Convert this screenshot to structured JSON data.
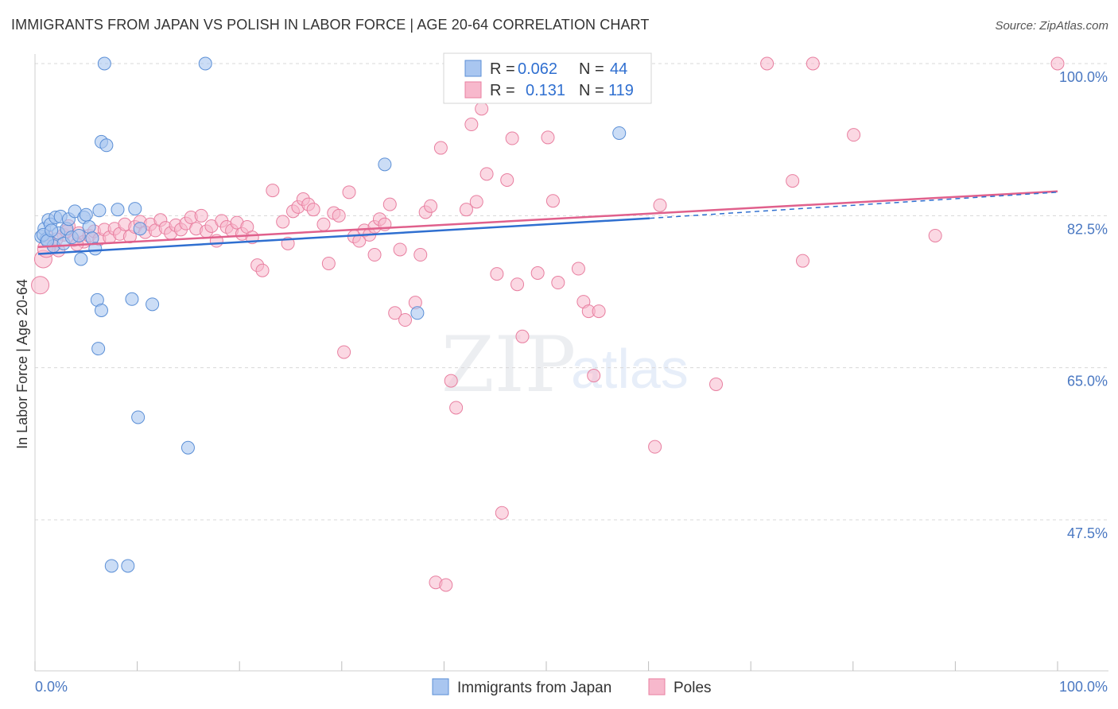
{
  "title": "IMMIGRANTS FROM JAPAN VS POLISH IN LABOR FORCE | AGE 20-64 CORRELATION CHART",
  "source": "Source: ZipAtlas.com",
  "watermark": {
    "zip": "ZIP",
    "atlas": "atlas"
  },
  "colors": {
    "japan_fill": "#a9c6f0",
    "japan_stroke": "#5b8fd6",
    "japan_line": "#2f6fd0",
    "poles_fill": "#f7b8cc",
    "poles_stroke": "#e87fa0",
    "poles_line": "#e0608c",
    "tick_label": "#4a78c2",
    "grid": "#d8d8d8"
  },
  "legend": {
    "r_label": "R =",
    "n_label": "N =",
    "rows": [
      {
        "r": "0.062",
        "n": "44"
      },
      {
        "r": "0.131",
        "n": "119"
      }
    ]
  },
  "chart_data": {
    "type": "scatter",
    "title": "IMMIGRANTS FROM JAPAN VS POLISH IN LABOR FORCE | AGE 20-64 CORRELATION CHART",
    "xlabel": "",
    "ylabel": "In Labor Force | Age 20-64",
    "xlim": [
      0,
      100
    ],
    "ylim": [
      30,
      102
    ],
    "x_tick_labels": [
      "0.0%",
      "100.0%"
    ],
    "y_ticks": [
      47.5,
      65.0,
      82.5,
      100.0
    ],
    "y_tick_labels": [
      "47.5%",
      "65.0%",
      "82.5%",
      "100.0%"
    ],
    "grid": "horizontal dashed",
    "legend_position": "top-center",
    "series": [
      {
        "name": "Immigrants from Japan",
        "r": 0.062,
        "n": 44,
        "trend": {
          "x0": 0,
          "y0": 78.1,
          "x1": 60,
          "y1": 82.2,
          "dash_to_x": 100,
          "dash_to_y": 85.2
        },
        "points": [
          [
            0.3,
            80.1
          ],
          [
            0.6,
            81.0
          ],
          [
            0.8,
            79.8
          ],
          [
            1.0,
            82.0
          ],
          [
            1.2,
            81.5
          ],
          [
            1.5,
            79.0
          ],
          [
            1.7,
            82.3
          ],
          [
            2.0,
            80.5
          ],
          [
            2.2,
            82.4
          ],
          [
            2.5,
            79.3
          ],
          [
            2.8,
            81.0
          ],
          [
            3.0,
            82.1
          ],
          [
            3.3,
            80.0
          ],
          [
            3.6,
            83.0
          ],
          [
            4.0,
            80.2
          ],
          [
            4.2,
            77.5
          ],
          [
            4.5,
            82.3
          ],
          [
            4.7,
            82.6
          ],
          [
            5.0,
            81.2
          ],
          [
            5.3,
            79.9
          ],
          [
            5.6,
            78.7
          ],
          [
            5.8,
            72.8
          ],
          [
            5.9,
            67.2
          ],
          [
            6.0,
            83.1
          ],
          [
            6.2,
            71.6
          ],
          [
            6.2,
            91.0
          ],
          [
            6.5,
            100.0
          ],
          [
            6.7,
            90.6
          ],
          [
            7.2,
            42.2
          ],
          [
            7.8,
            83.2
          ],
          [
            8.8,
            42.2
          ],
          [
            9.2,
            72.9
          ],
          [
            9.5,
            83.3
          ],
          [
            9.8,
            59.3
          ],
          [
            10.0,
            81.0
          ],
          [
            11.2,
            72.3
          ],
          [
            14.7,
            55.8
          ],
          [
            16.4,
            100.0
          ],
          [
            57.0,
            92.0
          ],
          [
            34.0,
            88.4
          ],
          [
            37.2,
            71.3
          ],
          [
            0.5,
            80.3
          ],
          [
            0.9,
            79.6
          ],
          [
            1.3,
            80.8
          ]
        ]
      },
      {
        "name": "Poles",
        "r": 0.131,
        "n": 119,
        "trend": {
          "x0": 0,
          "y0": 78.9,
          "x1": 100,
          "y1": 85.3
        },
        "points": [
          [
            0.2,
            74.5
          ],
          [
            0.5,
            77.5
          ],
          [
            1.0,
            80.0
          ],
          [
            1.5,
            79.0
          ],
          [
            2.0,
            78.5
          ],
          [
            2.5,
            80.3
          ],
          [
            3.0,
            81.3
          ],
          [
            3.5,
            79.7
          ],
          [
            4.0,
            80.5
          ],
          [
            4.5,
            79.5
          ],
          [
            5.0,
            80.2
          ],
          [
            5.5,
            80.7
          ],
          [
            6.0,
            79.8
          ],
          [
            6.5,
            80.9
          ],
          [
            7.0,
            80.0
          ],
          [
            7.5,
            81.0
          ],
          [
            8.0,
            80.4
          ],
          [
            8.5,
            81.5
          ],
          [
            9.0,
            80.1
          ],
          [
            9.5,
            81.2
          ],
          [
            10.0,
            81.8
          ],
          [
            10.5,
            80.6
          ],
          [
            11.0,
            81.5
          ],
          [
            11.5,
            80.8
          ],
          [
            12.0,
            82.0
          ],
          [
            12.5,
            81.1
          ],
          [
            13.0,
            80.5
          ],
          [
            13.5,
            81.4
          ],
          [
            14.0,
            80.9
          ],
          [
            14.5,
            81.6
          ],
          [
            15.0,
            82.3
          ],
          [
            15.5,
            81.0
          ],
          [
            16.0,
            82.5
          ],
          [
            16.5,
            80.7
          ],
          [
            17.0,
            81.3
          ],
          [
            17.5,
            79.6
          ],
          [
            18.0,
            81.9
          ],
          [
            18.5,
            81.2
          ],
          [
            19.0,
            80.8
          ],
          [
            19.5,
            81.7
          ],
          [
            20.0,
            80.4
          ],
          [
            20.5,
            81.2
          ],
          [
            21.0,
            80.0
          ],
          [
            21.5,
            76.8
          ],
          [
            22.0,
            76.2
          ],
          [
            23.0,
            85.4
          ],
          [
            24.0,
            81.8
          ],
          [
            24.5,
            79.3
          ],
          [
            25.0,
            83.0
          ],
          [
            25.5,
            83.5
          ],
          [
            26.0,
            84.4
          ],
          [
            26.5,
            83.8
          ],
          [
            27.0,
            83.2
          ],
          [
            28.0,
            81.5
          ],
          [
            28.5,
            77.0
          ],
          [
            29.0,
            82.8
          ],
          [
            29.5,
            82.5
          ],
          [
            30.0,
            66.8
          ],
          [
            30.5,
            85.2
          ],
          [
            31.0,
            80.1
          ],
          [
            31.5,
            79.6
          ],
          [
            32.0,
            80.8
          ],
          [
            32.5,
            80.3
          ],
          [
            33.0,
            81.2
          ],
          [
            33.5,
            82.1
          ],
          [
            34.0,
            81.5
          ],
          [
            34.5,
            83.8
          ],
          [
            33.0,
            78.0
          ],
          [
            35.0,
            71.3
          ],
          [
            35.5,
            78.6
          ],
          [
            36.0,
            70.5
          ],
          [
            37.0,
            72.5
          ],
          [
            37.5,
            78.0
          ],
          [
            38.0,
            82.9
          ],
          [
            38.5,
            83.6
          ],
          [
            39.0,
            40.3
          ],
          [
            39.5,
            90.3
          ],
          [
            40.0,
            40.0
          ],
          [
            40.5,
            63.5
          ],
          [
            41.0,
            60.4
          ],
          [
            41.5,
            99.7
          ],
          [
            42.0,
            83.2
          ],
          [
            42.5,
            93.0
          ],
          [
            43.0,
            84.1
          ],
          [
            43.5,
            94.8
          ],
          [
            44.0,
            87.3
          ],
          [
            44.5,
            99.0
          ],
          [
            45.0,
            75.8
          ],
          [
            45.5,
            48.3
          ],
          [
            46.0,
            86.6
          ],
          [
            46.5,
            91.4
          ],
          [
            47.0,
            74.6
          ],
          [
            47.5,
            68.6
          ],
          [
            48.0,
            99.5
          ],
          [
            49.0,
            75.9
          ],
          [
            50.0,
            91.5
          ],
          [
            50.5,
            84.2
          ],
          [
            51.0,
            74.8
          ],
          [
            52.0,
            97.0
          ],
          [
            53.0,
            76.4
          ],
          [
            53.5,
            72.6
          ],
          [
            54.0,
            71.5
          ],
          [
            54.5,
            64.1
          ],
          [
            55.0,
            71.5
          ],
          [
            56.0,
            98.0
          ],
          [
            60.5,
            55.9
          ],
          [
            61.0,
            83.7
          ],
          [
            66.5,
            63.1
          ],
          [
            71.5,
            100.0
          ],
          [
            74.0,
            86.5
          ],
          [
            75.0,
            77.3
          ],
          [
            76.0,
            100.0
          ],
          [
            80.0,
            91.8
          ],
          [
            88.0,
            80.2
          ],
          [
            100.0,
            100.0
          ],
          [
            0.8,
            78.7
          ],
          [
            1.8,
            79.8
          ],
          [
            2.8,
            80.7
          ],
          [
            3.8,
            79.2
          ]
        ]
      }
    ]
  },
  "bottom_legend": [
    "Immigrants from Japan",
    "Poles"
  ]
}
